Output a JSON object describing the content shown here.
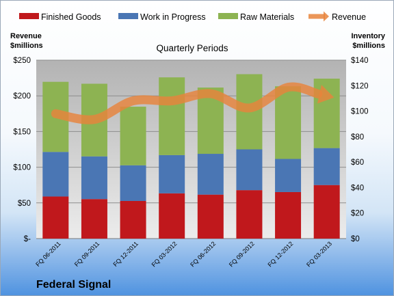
{
  "chart_data": {
    "type": "bar",
    "stacked": true,
    "title": "Quarterly Periods",
    "company": "Federal Signal",
    "categories": [
      "FQ 06-2011",
      "FQ 09-2011",
      "FQ 12-2011",
      "FQ 03-2012",
      "FQ 06-2012",
      "FQ 09-2012",
      "FQ 12-2012",
      "FQ 03-2013"
    ],
    "series": [
      {
        "name": "Finished Goods",
        "axis": "right",
        "color": "#c0181c",
        "values": [
          33,
          31,
          29.5,
          35.5,
          34.5,
          38,
          36.5,
          42
        ]
      },
      {
        "name": "Work in Progress",
        "axis": "right",
        "color": "#4a76b4",
        "values": [
          35,
          33.5,
          28,
          30,
          32,
          32,
          26,
          29
        ]
      },
      {
        "name": "Raw Materials",
        "axis": "right",
        "color": "#8db352",
        "values": [
          55,
          57,
          46,
          61,
          52,
          59,
          57,
          54.5
        ]
      },
      {
        "name": "Revenue",
        "type": "line",
        "axis": "left",
        "color": "#e8843c",
        "values": [
          175,
          167,
          193,
          193,
          203,
          183,
          212,
          200
        ]
      }
    ],
    "y_left": {
      "label": "Revenue\n$millions",
      "ylim": [
        0,
        250
      ],
      "ticks": [
        0,
        50,
        100,
        150,
        200,
        250
      ],
      "tick_labels": [
        "$-",
        "$50",
        "$100",
        "$150",
        "$200",
        "$250"
      ]
    },
    "y_right": {
      "label": "Inventory\n$millions",
      "ylim": [
        0,
        140
      ],
      "ticks": [
        0,
        20,
        40,
        60,
        80,
        100,
        120,
        140
      ],
      "tick_labels": [
        "$0",
        "$20",
        "$40",
        "$60",
        "$80",
        "$100",
        "$120",
        "$140"
      ]
    },
    "grid": true,
    "legend_position": "top"
  }
}
